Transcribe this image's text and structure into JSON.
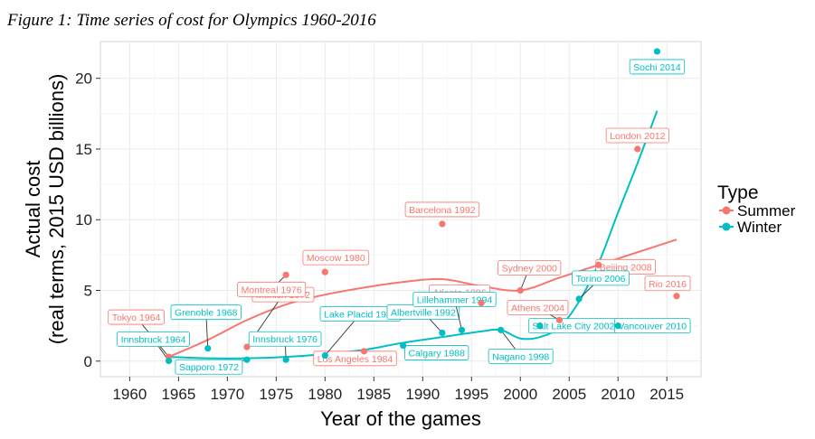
{
  "figure_caption": "Figure 1: Time series of cost for Olympics 1960-2016",
  "colors": {
    "summer": "#F8766D",
    "winter": "#00BFC4",
    "panel": "#ffffff",
    "grid_major": "#ebebeb",
    "grid_minor": "#f5f5f5"
  },
  "chart_data": {
    "type": "scatter",
    "xlabel": "Year of the games",
    "ylabel": "Actual cost (real terms, 2015 USD billions)",
    "ylabel_lines": [
      "Actual cost",
      "(real terms, 2015 USD billions)"
    ],
    "xlim": [
      1957,
      2018.5
    ],
    "ylim": [
      -1.1,
      22.6
    ],
    "x_ticks": [
      1960,
      1965,
      1970,
      1975,
      1980,
      1985,
      1990,
      1995,
      2000,
      2005,
      2010,
      2015
    ],
    "y_ticks": [
      0,
      5,
      10,
      15,
      20
    ],
    "grid": true,
    "legend": {
      "title": "Type",
      "position": "right",
      "entries": [
        "Summer",
        "Winter"
      ]
    },
    "series": [
      {
        "name": "Summer",
        "color": "#F8766D",
        "points": [
          {
            "label": "Tokyo 1964",
            "x": 1964,
            "y": 0.3
          },
          {
            "label": "Munich 1972",
            "x": 1972,
            "y": 1.0
          },
          {
            "label": "Montreal 1976",
            "x": 1976,
            "y": 6.1
          },
          {
            "label": "Moscow 1980",
            "x": 1980,
            "y": 6.3
          },
          {
            "label": "Los Angeles 1984",
            "x": 1984,
            "y": 0.7
          },
          {
            "label": "Barcelona 1992",
            "x": 1992,
            "y": 9.7
          },
          {
            "label": "Atlanta 1996",
            "x": 1996,
            "y": 4.1
          },
          {
            "label": "Sydney 2000",
            "x": 2000,
            "y": 5.0
          },
          {
            "label": "Athens 2004",
            "x": 2004,
            "y": 2.9
          },
          {
            "label": "Beijing 2008",
            "x": 2008,
            "y": 6.8
          },
          {
            "label": "London 2012",
            "x": 2012,
            "y": 15.0
          },
          {
            "label": "Rio 2016",
            "x": 2016,
            "y": 4.6
          }
        ],
        "smooth": [
          [
            1964,
            0.3
          ],
          [
            1968,
            1.5
          ],
          [
            1972,
            2.9
          ],
          [
            1976,
            4.0
          ],
          [
            1980,
            4.7
          ],
          [
            1984,
            5.2
          ],
          [
            1988,
            5.6
          ],
          [
            1992,
            5.8
          ],
          [
            1996,
            5.3
          ],
          [
            2000,
            5.0
          ],
          [
            2004,
            5.9
          ],
          [
            2008,
            6.8
          ],
          [
            2012,
            7.7
          ],
          [
            2016,
            8.6
          ]
        ]
      },
      {
        "name": "Winter",
        "color": "#00BFC4",
        "points": [
          {
            "label": "Innsbruck 1964",
            "x": 1964,
            "y": 0.02
          },
          {
            "label": "Grenoble 1968",
            "x": 1968,
            "y": 0.9
          },
          {
            "label": "Sapporo 1972",
            "x": 1972,
            "y": 0.1
          },
          {
            "label": "Innsbruck 1976",
            "x": 1976,
            "y": 0.1
          },
          {
            "label": "Lake Placid 1980",
            "x": 1980,
            "y": 0.4
          },
          {
            "label": "Calgary 1988",
            "x": 1988,
            "y": 1.1
          },
          {
            "label": "Albertville 1992",
            "x": 1992,
            "y": 2.0
          },
          {
            "label": "Lillehammer 1994",
            "x": 1994,
            "y": 2.2
          },
          {
            "label": "Nagano 1998",
            "x": 1998,
            "y": 2.2
          },
          {
            "label": "Salt Lake City 2002",
            "x": 2002,
            "y": 2.5
          },
          {
            "label": "Torino 2006",
            "x": 2006,
            "y": 4.4
          },
          {
            "label": "Vancouver 2010",
            "x": 2010,
            "y": 2.5
          },
          {
            "label": "Sochi 2014",
            "x": 2014,
            "y": 21.9
          }
        ],
        "smooth": [
          [
            1964,
            0.3
          ],
          [
            1968,
            0.2
          ],
          [
            1972,
            0.2
          ],
          [
            1976,
            0.3
          ],
          [
            1980,
            0.5
          ],
          [
            1984,
            0.8
          ],
          [
            1988,
            1.3
          ],
          [
            1992,
            1.7
          ],
          [
            1996,
            2.1
          ],
          [
            1998,
            2.2
          ],
          [
            2000,
            1.6
          ],
          [
            2002,
            1.7
          ],
          [
            2004,
            2.4
          ],
          [
            2006,
            4.2
          ],
          [
            2008,
            6.9
          ],
          [
            2010,
            10.5
          ],
          [
            2012,
            14.0
          ],
          [
            2014,
            17.7
          ]
        ]
      }
    ]
  }
}
